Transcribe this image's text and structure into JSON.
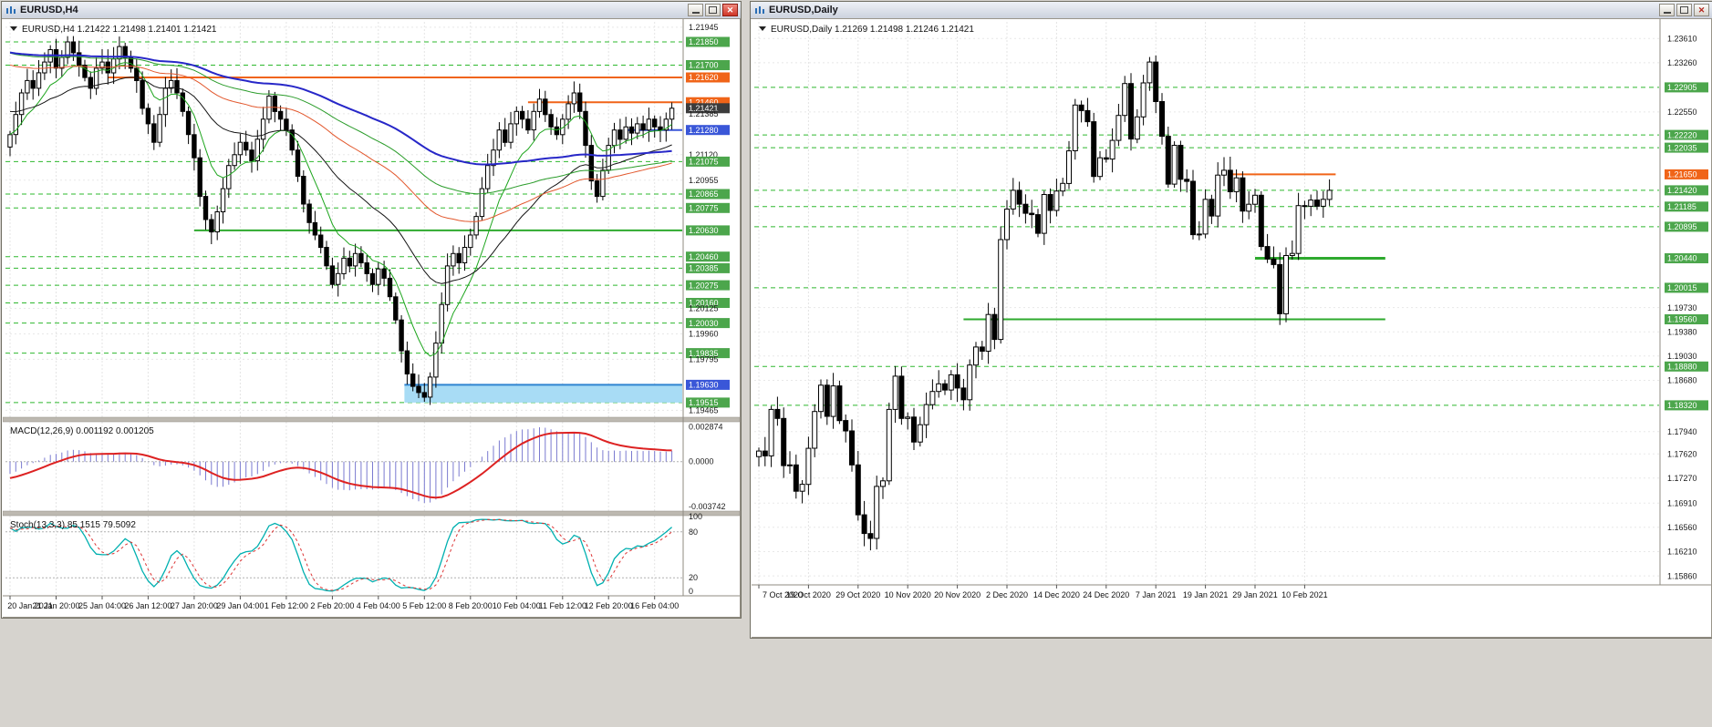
{
  "desktop": {
    "background": "#d6d3ce"
  },
  "colors": {
    "chip": {
      "green": "#4ca64c",
      "orange": "#f06418",
      "blue": "#3a57d8",
      "black": "#3c3c3c"
    },
    "grid_plain": "#e8e8e8",
    "grid_vertical": "#e4e4e4",
    "level_dashed_green": "#2eb82e",
    "candle_up_fill": "#ffffff",
    "candle_down_fill": "#000000",
    "candle_border": "#000000",
    "macd_histogram": "#7a7ad0",
    "macd_signal": "#dd2222",
    "stoch_main": "#00b0b0",
    "stoch_signal": "#dd3333",
    "zone_fill": "#a8dcf5",
    "zone_border": "#2f84d0",
    "separator": "#bdb9b1",
    "axis_line": "#8f8b82"
  },
  "left_window": {
    "title": "EURUSD,H4",
    "info": "EURUSD,H4 1.21422 1.21498 1.21401 1.21421",
    "macd_label": "MACD(12,26,9) 0.001192 0.001205",
    "stoch_label": "Stoch(13,3,3) 85.1515 79.5092",
    "macd_axis": [
      "0.002874",
      "0.0000",
      "-0.003742"
    ],
    "stoch_axis": [
      "100",
      "80",
      "20",
      "0"
    ],
    "price_axis": [
      {
        "v": "1.21945",
        "bg": "plain"
      },
      {
        "v": "1.21850",
        "bg": "green"
      },
      {
        "v": "1.21700",
        "bg": "green"
      },
      {
        "v": "1.21620",
        "bg": "orange"
      },
      {
        "v": "1.21460",
        "bg": "orange"
      },
      {
        "v": "1.21421",
        "bg": "black"
      },
      {
        "v": "1.21385",
        "bg": "plain"
      },
      {
        "v": "1.21280",
        "bg": "blue"
      },
      {
        "v": "1.21120",
        "bg": "plain"
      },
      {
        "v": "1.21075",
        "bg": "green"
      },
      {
        "v": "1.20955",
        "bg": "plain"
      },
      {
        "v": "1.20865",
        "bg": "green"
      },
      {
        "v": "1.20775",
        "bg": "green"
      },
      {
        "v": "1.20630",
        "bg": "green"
      },
      {
        "v": "1.20460",
        "bg": "green"
      },
      {
        "v": "1.20385",
        "bg": "green"
      },
      {
        "v": "1.20275",
        "bg": "green"
      },
      {
        "v": "1.20160",
        "bg": "green"
      },
      {
        "v": "1.20125",
        "bg": "plain"
      },
      {
        "v": "1.20030",
        "bg": "green"
      },
      {
        "v": "1.19960",
        "bg": "plain"
      },
      {
        "v": "1.19835",
        "bg": "green"
      },
      {
        "v": "1.19795",
        "bg": "plain"
      },
      {
        "v": "1.19630",
        "bg": "blue"
      },
      {
        "v": "1.19515",
        "bg": "green"
      },
      {
        "v": "1.19465",
        "bg": "plain"
      }
    ],
    "time_axis": [
      "20 Jan 2021",
      "21 Jan 20:00",
      "25 Jan 04:00",
      "26 Jan 12:00",
      "27 Jan 20:00",
      "29 Jan 04:00",
      "1 Feb 12:00",
      "2 Feb 20:00",
      "4 Feb 04:00",
      "5 Feb 12:00",
      "8 Feb 20:00",
      "10 Feb 04:00",
      "11 Feb 12:00",
      "12 Feb 20:00",
      "16 Feb 04:00"
    ]
  },
  "right_window": {
    "title": "EURUSD,Daily",
    "info": "EURUSD,Daily 1.21269 1.21498 1.21246 1.21421",
    "price_axis": [
      {
        "v": "1.23610",
        "bg": "plain"
      },
      {
        "v": "1.23260",
        "bg": "plain"
      },
      {
        "v": "1.22905",
        "bg": "green"
      },
      {
        "v": "1.22550",
        "bg": "plain"
      },
      {
        "v": "1.22220",
        "bg": "green"
      },
      {
        "v": "1.22035",
        "bg": "green"
      },
      {
        "v": "1.21650",
        "bg": "orange"
      },
      {
        "v": "1.21420",
        "bg": "green"
      },
      {
        "v": "1.21185",
        "bg": "green"
      },
      {
        "v": "1.20895",
        "bg": "green"
      },
      {
        "v": "1.20440",
        "bg": "green"
      },
      {
        "v": "1.20015",
        "bg": "green"
      },
      {
        "v": "1.19730",
        "bg": "plain"
      },
      {
        "v": "1.19560",
        "bg": "green"
      },
      {
        "v": "1.19380",
        "bg": "plain"
      },
      {
        "v": "1.19030",
        "bg": "plain"
      },
      {
        "v": "1.18880",
        "bg": "green"
      },
      {
        "v": "1.18680",
        "bg": "plain"
      },
      {
        "v": "1.18320",
        "bg": "green"
      },
      {
        "v": "1.17940",
        "bg": "plain"
      },
      {
        "v": "1.17620",
        "bg": "plain"
      },
      {
        "v": "1.17270",
        "bg": "plain"
      },
      {
        "v": "1.16910",
        "bg": "plain"
      },
      {
        "v": "1.16560",
        "bg": "plain"
      },
      {
        "v": "1.16210",
        "bg": "plain"
      },
      {
        "v": "1.15860",
        "bg": "plain"
      }
    ],
    "time_axis": [
      "7 Oct 2020",
      "19 Oct 2020",
      "29 Oct 2020",
      "10 Nov 2020",
      "20 Nov 2020",
      "2 Dec 2020",
      "14 Dec 2020",
      "24 Dec 2020",
      "7 Jan 2021",
      "19 Jan 2021",
      "29 Jan 2021",
      "10 Feb 2021"
    ]
  },
  "chart_data": [
    {
      "type": "candlestick",
      "symbol": "EURUSD",
      "timeframe": "H4",
      "ohlc_current": [
        1.21422,
        1.21498,
        1.21401,
        1.21421
      ],
      "y_range": [
        1.1942,
        1.2198
      ],
      "x_labels": [
        "20 Jan 2021",
        "21 Jan 20:00",
        "25 Jan 04:00",
        "26 Jan 12:00",
        "27 Jan 20:00",
        "29 Jan 04:00",
        "1 Feb 12:00",
        "2 Feb 20:00",
        "4 Feb 04:00",
        "5 Feb 12:00",
        "8 Feb 20:00",
        "10 Feb 04:00",
        "11 Feb 12:00",
        "12 Feb 20:00",
        "16 Feb 04:00"
      ],
      "closes": [
        1.2125,
        1.2138,
        1.2152,
        1.216,
        1.2155,
        1.2165,
        1.2172,
        1.218,
        1.2168,
        1.2175,
        1.2185,
        1.2178,
        1.217,
        1.2162,
        1.2155,
        1.2168,
        1.2172,
        1.2165,
        1.2174,
        1.2182,
        1.2175,
        1.2168,
        1.216,
        1.2142,
        1.2132,
        1.212,
        1.2138,
        1.2155,
        1.216,
        1.2152,
        1.214,
        1.2125,
        1.211,
        1.2085,
        1.207,
        1.2062,
        1.2075,
        1.209,
        1.2105,
        1.2112,
        1.212,
        1.2115,
        1.2108,
        1.2122,
        1.2135,
        1.215,
        1.214,
        1.2135,
        1.2128,
        1.2115,
        1.2098,
        1.208,
        1.2068,
        1.206,
        1.2052,
        1.204,
        1.2028,
        1.2035,
        1.2045,
        1.204,
        1.2048,
        1.2042,
        1.2035,
        1.2028,
        1.2038,
        1.2032,
        1.202,
        1.2005,
        1.1985,
        1.197,
        1.1962,
        1.1958,
        1.1955,
        1.1968,
        1.199,
        1.2015,
        1.204,
        1.2048,
        1.2042,
        1.2052,
        1.206,
        1.2072,
        1.209,
        1.2105,
        1.2115,
        1.2128,
        1.212,
        1.2132,
        1.214,
        1.2135,
        1.2128,
        1.214,
        1.2148,
        1.2138,
        1.213,
        1.2125,
        1.2135,
        1.2145,
        1.2152,
        1.214,
        1.2118,
        1.2095,
        1.2085,
        1.2102,
        1.2118,
        1.2128,
        1.2122,
        1.213,
        1.2126,
        1.2132,
        1.2128,
        1.2135,
        1.213,
        1.2128,
        1.2135,
        1.21421
      ],
      "levels": {
        "dashed_green": [
          1.2185,
          1.217,
          1.21075,
          1.20865,
          1.20775,
          1.2046,
          1.20385,
          1.20275,
          1.2016,
          1.2003,
          1.19835,
          1.19515
        ],
        "solid": [
          {
            "price": 1.2162,
            "color": "#f06418",
            "from": 17,
            "to": null,
            "w": 2
          },
          {
            "price": 1.2146,
            "color": "#f06418",
            "from": 90,
            "to": null,
            "w": 2
          },
          {
            "price": 1.2128,
            "color": "#3a57d8",
            "from": 107,
            "to": null,
            "w": 2
          },
          {
            "price": 1.2063,
            "color": "#2eaa2e",
            "from": 32,
            "to": null,
            "w": 2
          }
        ],
        "zone": {
          "top": 1.1963,
          "bottom": 1.19515,
          "from": 69
        }
      },
      "moving_averages": [
        {
          "period": 9,
          "color": "#1da51d",
          "width": 1
        },
        {
          "period": 30,
          "color": "#141414",
          "width": 1
        },
        {
          "period": 65,
          "color": "#e2572c",
          "width": 1
        },
        {
          "period": 90,
          "color": "#2a9c2a",
          "width": 1
        },
        {
          "period": 130,
          "color": "#2727c8",
          "width": 2
        }
      ],
      "indicators": {
        "macd": {
          "fast": 12,
          "slow": 26,
          "signal": 9,
          "current": [
            0.001192,
            0.001205
          ],
          "axis_range": [
            -0.003742,
            0.002874
          ]
        },
        "stochastic": {
          "k": 13,
          "d": 3,
          "slowing": 3,
          "current": [
            85.1515,
            79.5092
          ],
          "levels": [
            80,
            20
          ]
        }
      }
    },
    {
      "type": "candlestick",
      "symbol": "EURUSD",
      "timeframe": "Daily",
      "ohlc_current": [
        1.21269,
        1.21498,
        1.21246,
        1.21421
      ],
      "y_range": [
        1.1573,
        1.2385
      ],
      "x_labels": [
        "7 Oct 2020",
        "19 Oct 2020",
        "29 Oct 2020",
        "10 Nov 2020",
        "20 Nov 2020",
        "2 Dec 2020",
        "14 Dec 2020",
        "24 Dec 2020",
        "7 Jan 2021",
        "19 Jan 2021",
        "29 Jan 2021",
        "10 Feb 2021"
      ],
      "closes": [
        1.1766,
        1.1759,
        1.1826,
        1.1813,
        1.1745,
        1.1746,
        1.1708,
        1.1718,
        1.177,
        1.1823,
        1.1861,
        1.1816,
        1.186,
        1.181,
        1.1795,
        1.1746,
        1.1674,
        1.1647,
        1.164,
        1.1715,
        1.1723,
        1.1826,
        1.1874,
        1.1813,
        1.1815,
        1.1779,
        1.1804,
        1.1833,
        1.1852,
        1.1863,
        1.1854,
        1.1876,
        1.1857,
        1.184,
        1.189,
        1.1916,
        1.191,
        1.1963,
        1.1927,
        1.2071,
        1.2115,
        1.2142,
        1.2122,
        1.2109,
        1.2107,
        1.208,
        1.2136,
        1.2113,
        1.2141,
        1.2152,
        1.2199,
        1.2265,
        1.2257,
        1.2241,
        1.2162,
        1.2189,
        1.2187,
        1.2214,
        1.225,
        1.2296,
        1.2216,
        1.2248,
        1.2297,
        1.2327,
        1.227,
        1.222,
        1.2151,
        1.2207,
        1.2158,
        1.2155,
        1.2078,
        1.2079,
        1.2129,
        1.2105,
        1.2164,
        1.2171,
        1.214,
        1.216,
        1.2112,
        1.2122,
        1.2135,
        1.2061,
        1.2043,
        1.2035,
        1.1964,
        1.2048,
        1.2051,
        1.212,
        1.2119,
        1.2128,
        1.2119,
        1.2129,
        1.21421
      ],
      "levels": {
        "dashed_green": [
          1.22905,
          1.2222,
          1.22035,
          1.2142,
          1.21185,
          1.20895,
          1.20015,
          1.1888,
          1.1832
        ],
        "solid": [
          {
            "price": 1.2165,
            "color": "#f06418",
            "from": 76,
            "to": 93,
            "w": 2
          },
          {
            "price": 1.2044,
            "color": "#2eaa2e",
            "from": 80,
            "to": 101,
            "w": 3
          },
          {
            "price": 1.1956,
            "color": "#2eaa2e",
            "from": 33,
            "to": 101,
            "w": 2
          }
        ]
      }
    }
  ]
}
